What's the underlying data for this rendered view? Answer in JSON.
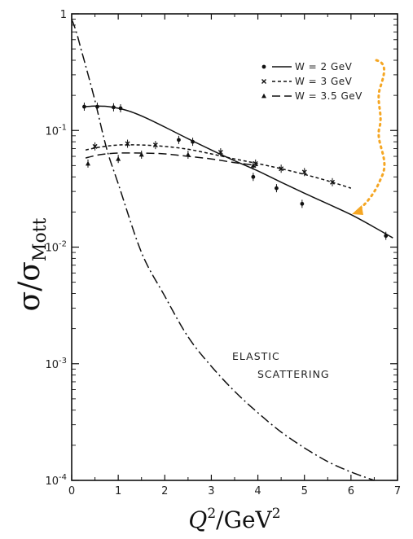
{
  "chart_data": {
    "type": "line",
    "title": "",
    "xlabel": "Q",
    "xlabel_sup": "2",
    "xlabel_unit": "GeV",
    "xlabel_unit_sup": "2",
    "xlabel_sep": "/",
    "ylabel": "σ",
    "ylabel_denom": "σ",
    "ylabel_denom_sub": "Mott",
    "ylabel_sep": "/",
    "xlim": [
      0,
      7
    ],
    "ylim": [
      0.0001,
      1
    ],
    "yscale": "log",
    "grid": false,
    "legend_position": "top-right",
    "x_ticks": [
      "0",
      "1",
      "2",
      "3",
      "4",
      "5",
      "6",
      "7"
    ],
    "y_ticks": [
      {
        "value": 1,
        "base": "1",
        "exp": ""
      },
      {
        "value": 0.1,
        "base": "10",
        "exp": "-1"
      },
      {
        "value": 0.01,
        "base": "10",
        "exp": "-2"
      },
      {
        "value": 0.001,
        "base": "10",
        "exp": "-3"
      },
      {
        "value": 0.0001,
        "base": "10",
        "exp": "-4"
      }
    ],
    "series": [
      {
        "name": "W = 2 GeV",
        "marker": "dot",
        "line_style": "solid",
        "curve": [
          [
            0.3,
            0.16
          ],
          [
            0.5,
            0.162
          ],
          [
            0.8,
            0.16
          ],
          [
            1.2,
            0.148
          ],
          [
            1.6,
            0.128
          ],
          [
            2.0,
            0.107
          ],
          [
            2.5,
            0.085
          ],
          [
            3.0,
            0.068
          ],
          [
            3.5,
            0.055
          ],
          [
            4.0,
            0.045
          ],
          [
            4.5,
            0.036
          ],
          [
            5.0,
            0.029
          ],
          [
            5.5,
            0.0235
          ],
          [
            6.0,
            0.019
          ],
          [
            6.5,
            0.0148
          ],
          [
            6.9,
            0.012
          ]
        ],
        "points": [
          {
            "x": 0.27,
            "y": 0.16
          },
          {
            "x": 0.55,
            "y": 0.16
          },
          {
            "x": 0.9,
            "y": 0.158
          },
          {
            "x": 1.05,
            "y": 0.155
          },
          {
            "x": 2.3,
            "y": 0.083
          },
          {
            "x": 2.6,
            "y": 0.08
          },
          {
            "x": 3.9,
            "y": 0.04
          },
          {
            "x": 4.4,
            "y": 0.032
          },
          {
            "x": 4.95,
            "y": 0.0235
          },
          {
            "x": 6.75,
            "y": 0.0125
          }
        ]
      },
      {
        "name": "W = 3 GeV",
        "marker": "x",
        "line_style": "short-dash",
        "curve": [
          [
            0.3,
            0.068
          ],
          [
            0.6,
            0.072
          ],
          [
            1.0,
            0.075
          ],
          [
            1.5,
            0.075
          ],
          [
            2.0,
            0.073
          ],
          [
            2.5,
            0.069
          ],
          [
            3.0,
            0.063
          ],
          [
            3.5,
            0.057
          ],
          [
            4.0,
            0.052
          ],
          [
            4.5,
            0.047
          ],
          [
            5.0,
            0.042
          ],
          [
            5.5,
            0.037
          ],
          [
            6.0,
            0.032
          ]
        ],
        "points": [
          {
            "x": 0.5,
            "y": 0.073
          },
          {
            "x": 1.2,
            "y": 0.077
          },
          {
            "x": 1.8,
            "y": 0.075
          },
          {
            "x": 3.2,
            "y": 0.065
          },
          {
            "x": 3.95,
            "y": 0.052
          },
          {
            "x": 4.5,
            "y": 0.047
          },
          {
            "x": 5.0,
            "y": 0.044
          },
          {
            "x": 5.6,
            "y": 0.036
          }
        ]
      },
      {
        "name": "W = 3.5 GeV",
        "marker": "triangle",
        "line_style": "long-dash",
        "curve": [
          [
            0.3,
            0.058
          ],
          [
            0.6,
            0.062
          ],
          [
            1.0,
            0.064
          ],
          [
            1.5,
            0.064
          ],
          [
            2.0,
            0.063
          ],
          [
            2.5,
            0.06
          ],
          [
            3.0,
            0.057
          ],
          [
            3.5,
            0.053
          ],
          [
            4.0,
            0.05
          ]
        ],
        "points": [
          {
            "x": 0.35,
            "y": 0.052
          },
          {
            "x": 1.0,
            "y": 0.057
          },
          {
            "x": 1.5,
            "y": 0.062
          },
          {
            "x": 2.5,
            "y": 0.062
          },
          {
            "x": 3.9,
            "y": 0.05
          }
        ]
      },
      {
        "name": "Elastic scattering",
        "line_style": "dash-dot",
        "curve": [
          [
            0.0,
            0.9
          ],
          [
            0.1,
            0.7
          ],
          [
            0.2,
            0.5
          ],
          [
            0.3,
            0.36
          ],
          [
            0.5,
            0.18
          ],
          [
            0.75,
            0.07
          ],
          [
            1.0,
            0.035
          ],
          [
            1.5,
            0.009
          ],
          [
            2.0,
            0.0038
          ],
          [
            2.5,
            0.0017
          ],
          [
            3.0,
            0.00095
          ],
          [
            3.5,
            0.00058
          ],
          [
            4.0,
            0.00038
          ],
          [
            4.5,
            0.00026
          ],
          [
            5.0,
            0.00019
          ],
          [
            5.5,
            0.000145
          ],
          [
            6.0,
            0.000118
          ],
          [
            6.5,
            0.0001
          ]
        ]
      }
    ],
    "annotations": [
      "ELASTIC",
      "SCATTERING"
    ],
    "colors": {
      "ink": "#111111",
      "arrow": "#f5a623",
      "background": "#ffffff"
    }
  }
}
